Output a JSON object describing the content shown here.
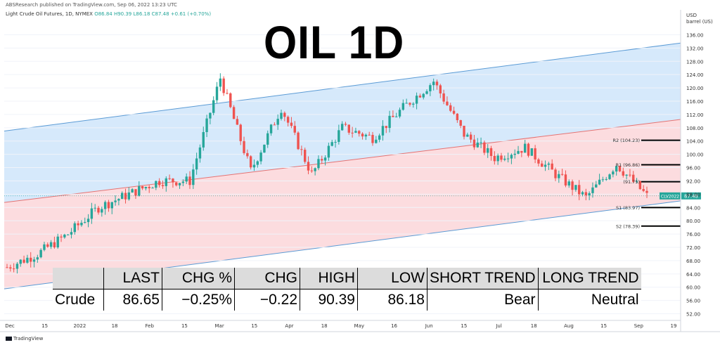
{
  "header": {
    "published": "ABSResearch published on TradingView.com, Sep 06, 2022 13:23 UTC",
    "symbol_line": "Light Crude Oil Futures, 1D, NYMEX",
    "ohlc": "O86.84 H90.39 L86.18 C87.48 +0.61 (+0.70%)"
  },
  "title": "OIL 1D",
  "unit": [
    "USD",
    "barrel (US)"
  ],
  "footer": {
    "brand": "TradingView"
  },
  "colors": {
    "up": "#26a69a",
    "down": "#ef5350",
    "upper_channel_fill": "#d6e9fb",
    "lower_channel_fill": "#fcdcdf",
    "channel_line": "#5b9bd5",
    "mid_line": "#e57373",
    "price_tag": "#26a69a"
  },
  "chart_data": {
    "type": "candlestick",
    "symbol": "CLV2022",
    "last_price": 87.48,
    "y_ticks": [
      52,
      56,
      60,
      64,
      68,
      72,
      76,
      80,
      84,
      88,
      92,
      96,
      100,
      104,
      108,
      112,
      116,
      120,
      124,
      128,
      132,
      136
    ],
    "ylim": [
      50,
      138
    ],
    "x_ticks": [
      "Dec",
      "15",
      "2022",
      "18",
      "Feb",
      "15",
      "Mar",
      "15",
      "Apr",
      "18",
      "May",
      "16",
      "Jun",
      "15",
      "Jul",
      "18",
      "Aug",
      "15",
      "Sep",
      "19"
    ],
    "channel": {
      "upper_start": 107,
      "upper_end": 133.5,
      "mid_start": 85.5,
      "mid_end": 110.5,
      "lower_start": 59.5,
      "lower_end": 86
    },
    "levels": [
      {
        "label": "R2 (104.23)",
        "value": 104.23
      },
      {
        "label": "R1 (96.86)",
        "value": 96.86
      },
      {
        "label": "(91.75)",
        "value": 91.75
      },
      {
        "label": "S1 (83.97)",
        "value": 83.97
      },
      {
        "label": "S2 (78.39)",
        "value": 78.39
      }
    ],
    "key_closes": [
      {
        "date": "Dec 01",
        "close": 66
      },
      {
        "date": "Dec 20",
        "close": 70
      },
      {
        "date": "Jan 03",
        "close": 76
      },
      {
        "date": "Jan 18",
        "close": 84
      },
      {
        "date": "Feb 01",
        "close": 88
      },
      {
        "date": "Feb 15",
        "close": 92
      },
      {
        "date": "Feb 25",
        "close": 92
      },
      {
        "date": "Mar 08",
        "close": 123
      },
      {
        "date": "Mar 16",
        "close": 95
      },
      {
        "date": "Mar 23",
        "close": 114
      },
      {
        "date": "Apr 11",
        "close": 94
      },
      {
        "date": "Apr 18",
        "close": 108
      },
      {
        "date": "May 02",
        "close": 105
      },
      {
        "date": "May 16",
        "close": 114
      },
      {
        "date": "Jun 08",
        "close": 122
      },
      {
        "date": "Jun 22",
        "close": 106
      },
      {
        "date": "Jul 05",
        "close": 99
      },
      {
        "date": "Jul 18",
        "close": 102
      },
      {
        "date": "Aug 01",
        "close": 94
      },
      {
        "date": "Aug 16",
        "close": 87
      },
      {
        "date": "Aug 29",
        "close": 97
      },
      {
        "date": "Sep 06",
        "close": 87.48
      }
    ]
  },
  "table": {
    "headers": [
      "",
      "LAST",
      "CHG %",
      "CHG",
      "HIGH",
      "LOW",
      "SHORT TREND",
      "LONG TREND"
    ],
    "row": [
      "Crude",
      "86.65",
      "−0.25%",
      "−0.22",
      "90.39",
      "86.18",
      "Bear",
      "Neutral"
    ]
  }
}
